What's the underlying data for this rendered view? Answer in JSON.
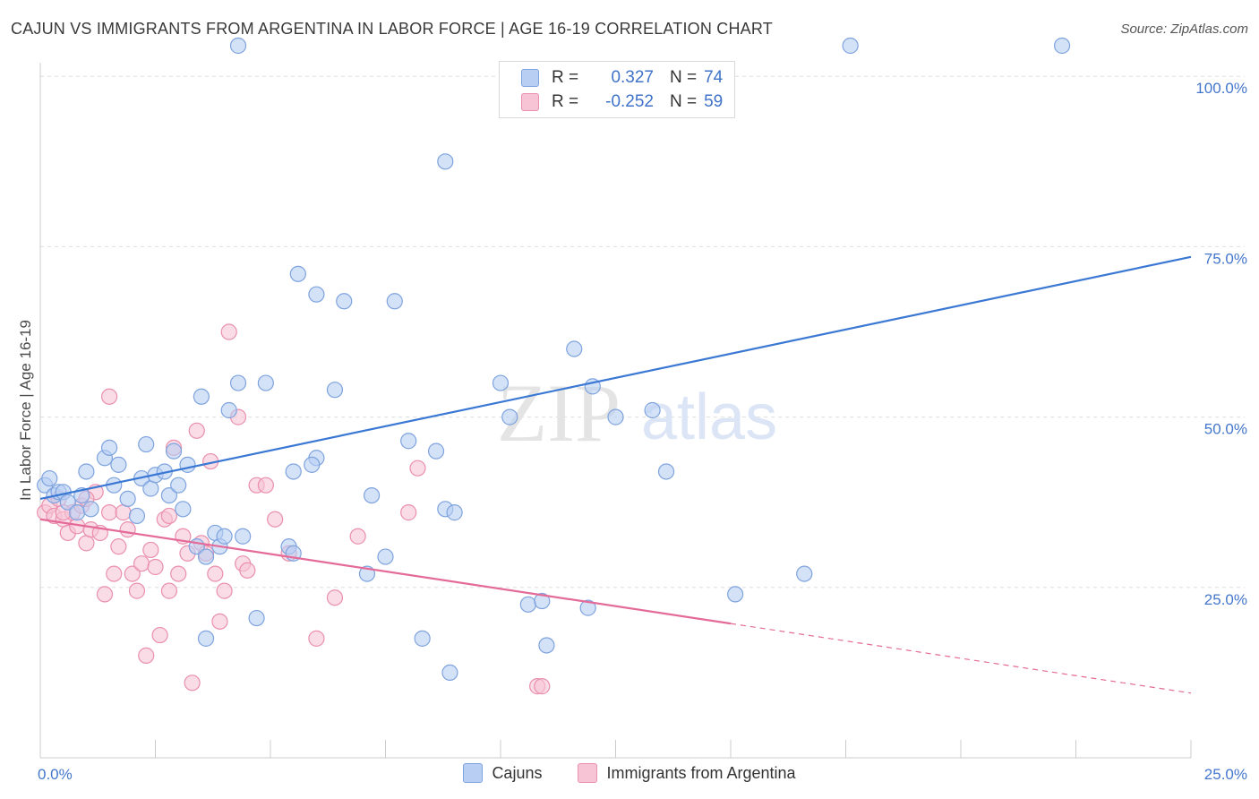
{
  "header": {
    "title": "CAJUN VS IMMIGRANTS FROM ARGENTINA IN LABOR FORCE | AGE 16-19 CORRELATION CHART",
    "source": "Source: ZipAtlas.com"
  },
  "watermark": {
    "text_zip": "ZIP",
    "text_atlas": "atlas"
  },
  "legend": {
    "rows": [
      {
        "r_label": "R =",
        "r_value": "0.327",
        "n_label": "N =",
        "n_value": "74"
      },
      {
        "r_label": "R =",
        "r_value": "-0.252",
        "n_label": "N =",
        "n_value": "59"
      }
    ]
  },
  "colors": {
    "blue_fill": "#b8cff3",
    "blue_stroke": "#7ea3de",
    "blue_line": "#3a78d4",
    "pink_fill": "#f7c4d5",
    "pink_stroke": "#ea8fae",
    "pink_line": "#e46a98",
    "grid": "#dddddd",
    "tick_text": "#4477cc"
  },
  "chart_data": {
    "type": "scatter",
    "ylabel": "In Labor Force | Age 16-19",
    "xlim": [
      0,
      25
    ],
    "ylim": [
      0,
      102
    ],
    "y_ticks": [
      {
        "value": 25,
        "label": "25.0%"
      },
      {
        "value": 50,
        "label": "50.0%"
      },
      {
        "value": 75,
        "label": "75.0%"
      },
      {
        "value": 100,
        "label": "100.0%"
      }
    ],
    "x_tick_labels": [
      {
        "value": 0,
        "label": "0.0%"
      },
      {
        "value": 25,
        "label": "25.0%"
      }
    ],
    "x_minor_ticks": [
      0,
      2.5,
      5,
      7.5,
      10,
      12.5,
      15,
      17.5,
      20,
      22.5,
      25
    ],
    "series": [
      {
        "name": "Cajuns",
        "color": "#b8cff3",
        "trend": {
          "x0": 0,
          "y0": 38,
          "x1": 25,
          "y1": 73.5,
          "dash_from": null
        },
        "points": [
          [
            0.1,
            40
          ],
          [
            0.2,
            41
          ],
          [
            0.3,
            38.5
          ],
          [
            0.4,
            39
          ],
          [
            0.5,
            39
          ],
          [
            0.6,
            37.5
          ],
          [
            0.8,
            36
          ],
          [
            0.9,
            38.5
          ],
          [
            1.0,
            42
          ],
          [
            1.1,
            36.5
          ],
          [
            1.4,
            44
          ],
          [
            1.5,
            45.5
          ],
          [
            1.6,
            40
          ],
          [
            1.7,
            43
          ],
          [
            1.9,
            38
          ],
          [
            2.1,
            35.5
          ],
          [
            2.2,
            41
          ],
          [
            2.3,
            46
          ],
          [
            2.4,
            39.5
          ],
          [
            2.5,
            41.5
          ],
          [
            2.7,
            42
          ],
          [
            2.8,
            38.5
          ],
          [
            2.9,
            45
          ],
          [
            3.0,
            40
          ],
          [
            3.1,
            36.5
          ],
          [
            3.2,
            43
          ],
          [
            3.4,
            31
          ],
          [
            3.5,
            53
          ],
          [
            3.6,
            29.5
          ],
          [
            3.8,
            33
          ],
          [
            3.9,
            31
          ],
          [
            4.0,
            32.5
          ],
          [
            4.1,
            51
          ],
          [
            4.3,
            55
          ],
          [
            4.4,
            32.5
          ],
          [
            4.9,
            55
          ],
          [
            4.7,
            20.5
          ],
          [
            3.6,
            17.5
          ],
          [
            5.4,
            31
          ],
          [
            5.5,
            30
          ],
          [
            5.5,
            42
          ],
          [
            5.6,
            71
          ],
          [
            6.0,
            44
          ],
          [
            5.9,
            43
          ],
          [
            6.0,
            68
          ],
          [
            6.4,
            54
          ],
          [
            6.6,
            67
          ],
          [
            7.1,
            27
          ],
          [
            7.2,
            38.5
          ],
          [
            7.5,
            29.5
          ],
          [
            7.7,
            67
          ],
          [
            8.0,
            46.5
          ],
          [
            8.3,
            17.5
          ],
          [
            8.6,
            45
          ],
          [
            8.8,
            36.5
          ],
          [
            8.9,
            12.5
          ],
          [
            9.0,
            36
          ],
          [
            10.0,
            55
          ],
          [
            10.2,
            50
          ],
          [
            10.6,
            22.5
          ],
          [
            10.9,
            23
          ],
          [
            11.0,
            16.5
          ],
          [
            11.6,
            60
          ],
          [
            11.9,
            22
          ],
          [
            12.0,
            54.5
          ],
          [
            12.5,
            50
          ],
          [
            13.3,
            51
          ],
          [
            13.6,
            42
          ],
          [
            15.1,
            24
          ],
          [
            16.6,
            27
          ],
          [
            4.3,
            104.5
          ],
          [
            8.8,
            87.5
          ],
          [
            17.6,
            104.5
          ],
          [
            22.2,
            104.5
          ]
        ]
      },
      {
        "name": "Immigrants from Argentina",
        "color": "#f7c4d5",
        "trend": {
          "x0": 0,
          "y0": 35,
          "x1": 25,
          "y1": 9.5,
          "dash_from": 15
        },
        "points": [
          [
            0.1,
            36
          ],
          [
            0.2,
            37
          ],
          [
            0.3,
            35.5
          ],
          [
            0.4,
            38
          ],
          [
            0.5,
            35
          ],
          [
            0.6,
            33
          ],
          [
            0.7,
            36
          ],
          [
            0.8,
            34
          ],
          [
            0.9,
            37
          ],
          [
            1.0,
            31.5
          ],
          [
            1.1,
            33.5
          ],
          [
            1.2,
            39
          ],
          [
            1.3,
            33
          ],
          [
            1.4,
            24
          ],
          [
            1.5,
            36
          ],
          [
            1.6,
            27
          ],
          [
            1.7,
            31
          ],
          [
            1.8,
            36
          ],
          [
            1.9,
            33.5
          ],
          [
            2.0,
            27
          ],
          [
            2.1,
            24.5
          ],
          [
            2.2,
            28.5
          ],
          [
            2.3,
            15
          ],
          [
            2.4,
            30.5
          ],
          [
            2.5,
            28
          ],
          [
            2.6,
            18
          ],
          [
            2.7,
            35
          ],
          [
            2.8,
            24.5
          ],
          [
            2.9,
            45.5
          ],
          [
            3.0,
            27
          ],
          [
            3.1,
            32.5
          ],
          [
            3.2,
            30
          ],
          [
            3.3,
            11
          ],
          [
            3.4,
            48
          ],
          [
            3.5,
            31.5
          ],
          [
            3.6,
            30
          ],
          [
            3.7,
            43.5
          ],
          [
            3.8,
            27
          ],
          [
            3.9,
            20
          ],
          [
            4.0,
            24.5
          ],
          [
            4.1,
            62.5
          ],
          [
            4.3,
            50
          ],
          [
            4.4,
            28.5
          ],
          [
            4.5,
            27.5
          ],
          [
            4.7,
            40
          ],
          [
            4.9,
            40
          ],
          [
            5.1,
            35
          ],
          [
            5.4,
            30
          ],
          [
            6.0,
            17.5
          ],
          [
            6.4,
            23.5
          ],
          [
            6.9,
            32.5
          ],
          [
            8.0,
            36
          ],
          [
            8.2,
            42.5
          ],
          [
            10.8,
            10.5
          ],
          [
            10.9,
            10.5
          ],
          [
            1.5,
            53
          ],
          [
            2.8,
            35.5
          ],
          [
            0.5,
            36
          ],
          [
            1.0,
            38
          ]
        ]
      }
    ]
  }
}
